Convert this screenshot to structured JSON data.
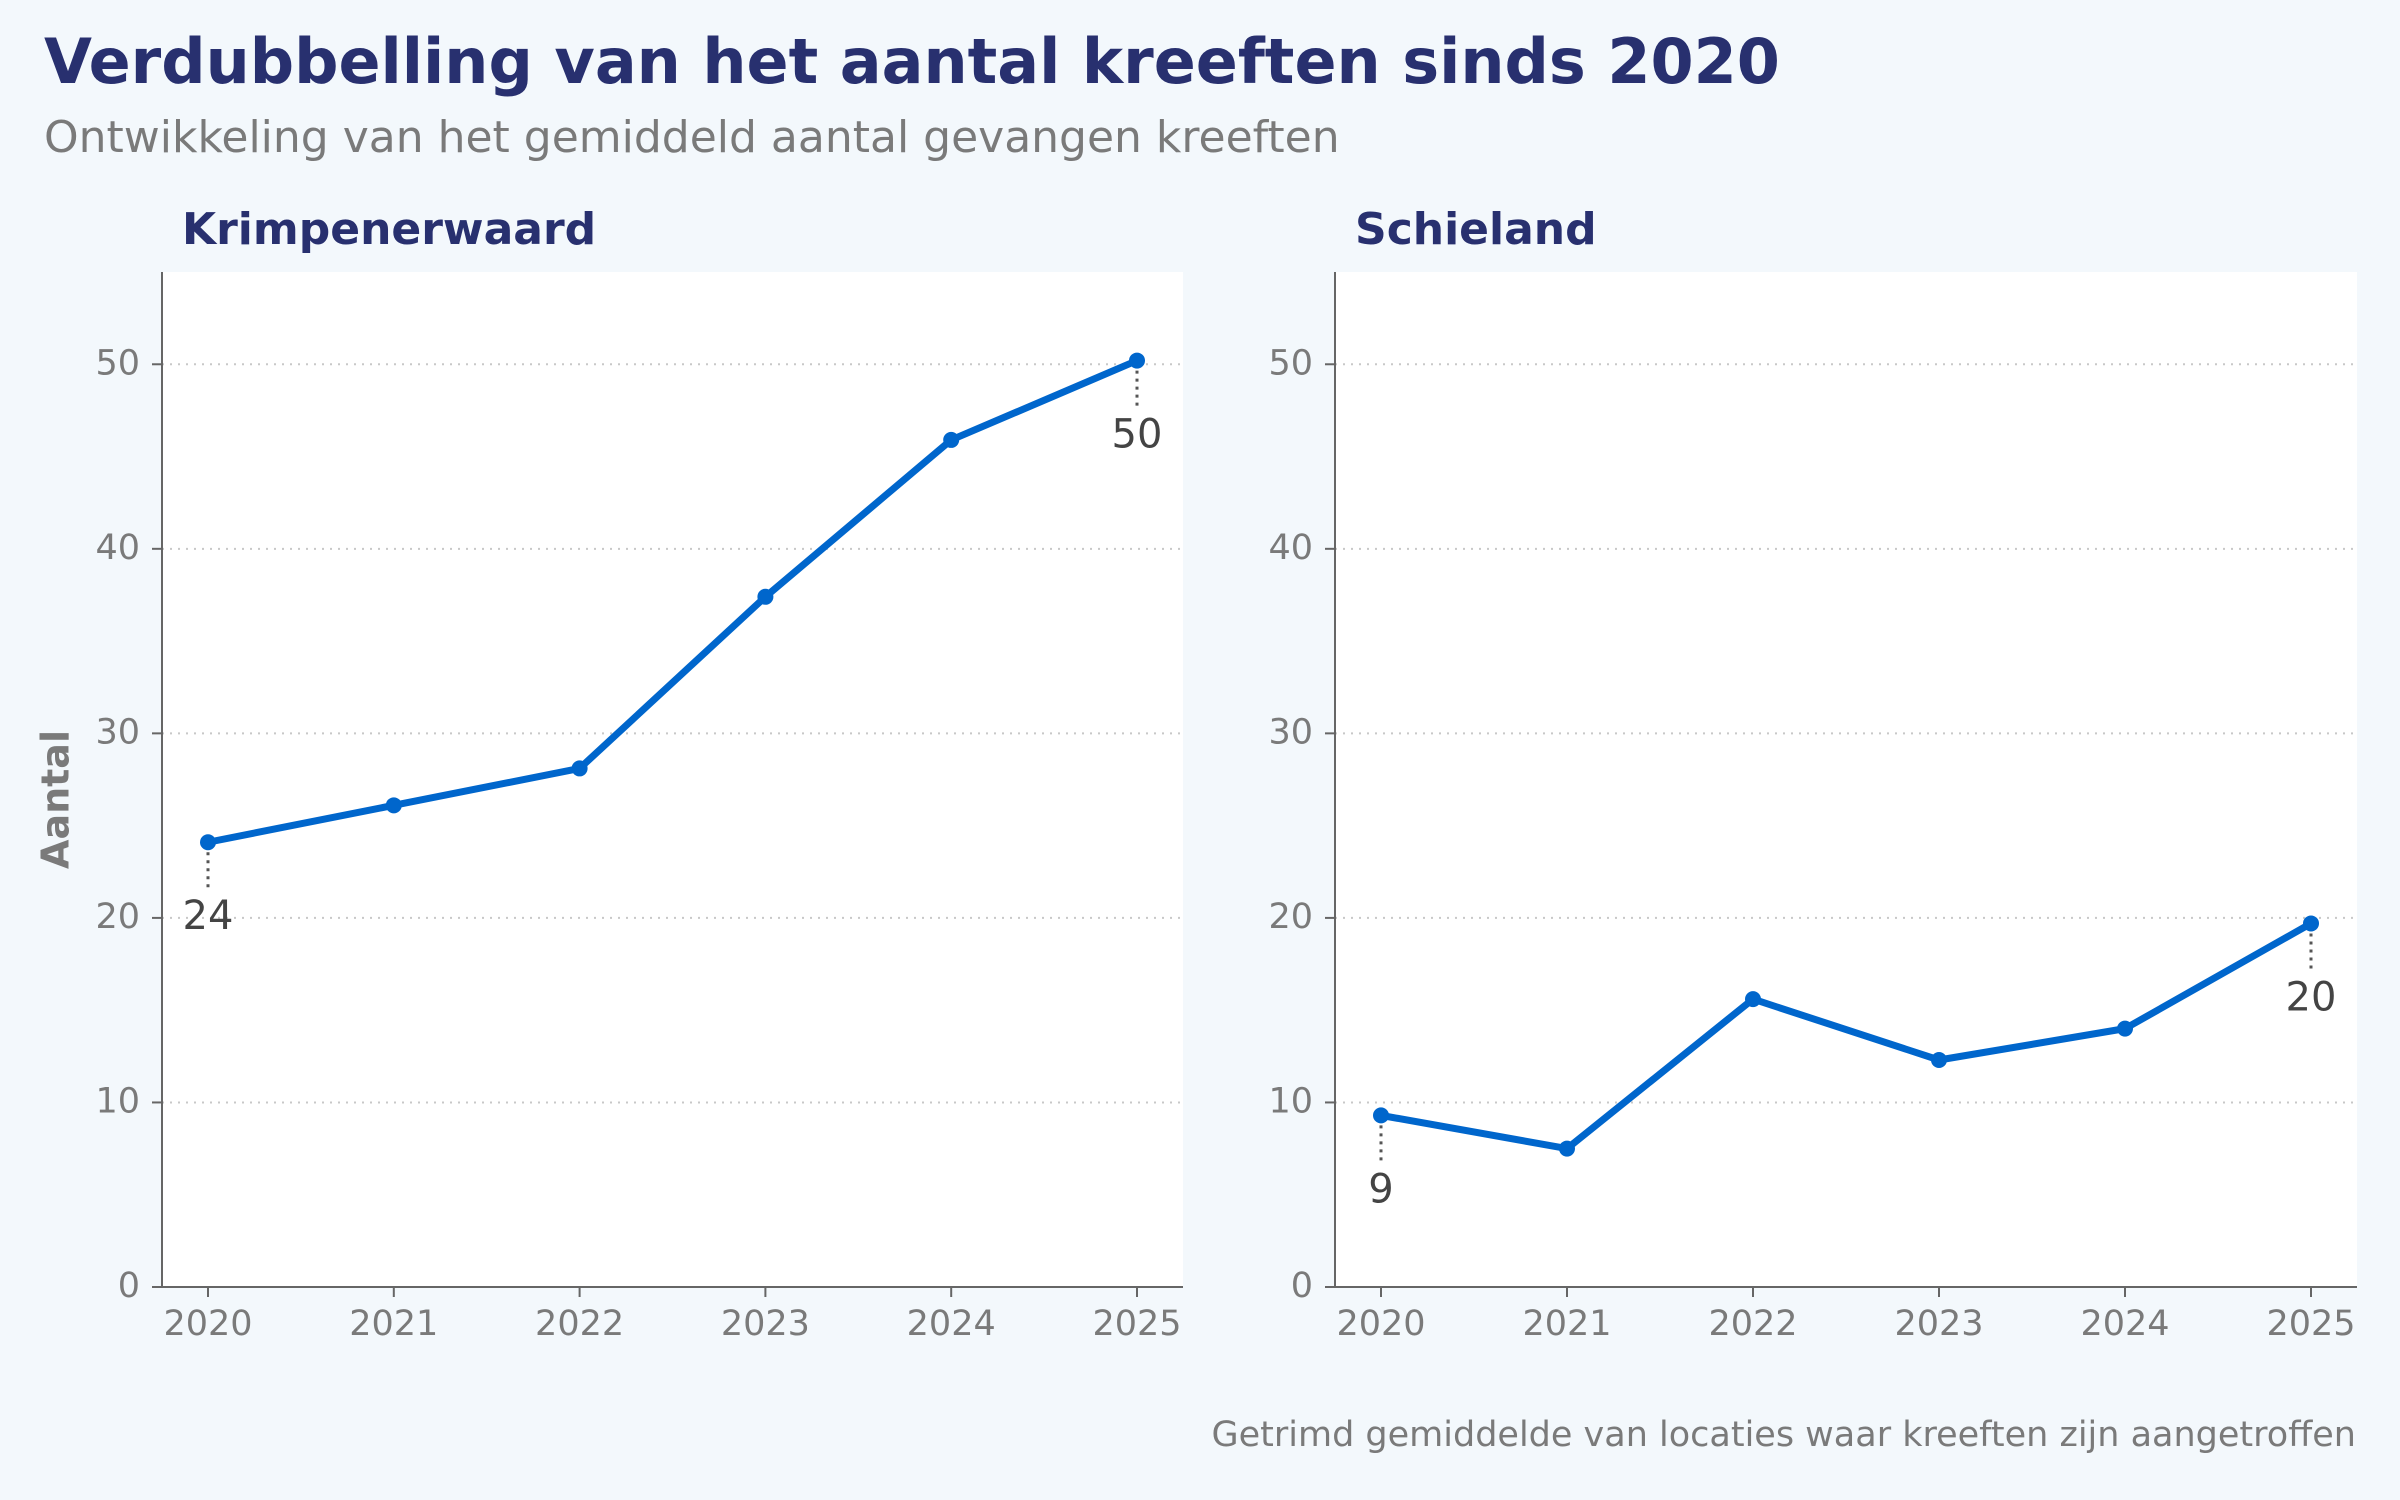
{
  "title": "Verdubbelling van het aantal kreeften sinds 2020",
  "subtitle": "Ontwikkeling van het gemiddeld aantal gevangen kreeften",
  "caption": "Getrimd gemiddelde van locaties waar kreeften zijn aangetroffen",
  "chart_data": [
    {
      "type": "line",
      "title": "Krimpenerwaard",
      "y_label": "Aantal",
      "categories": [
        "2020",
        "2021",
        "2022",
        "2023",
        "2024",
        "2025"
      ],
      "values": [
        24.1,
        26.1,
        28.1,
        37.4,
        45.9,
        50.2
      ],
      "value_labels": [
        "24",
        null,
        null,
        null,
        null,
        "50"
      ],
      "color": "#0066cc",
      "ylim": [
        0,
        55
      ],
      "yticks": [
        0,
        10,
        20,
        30,
        40,
        50
      ],
      "grid": true
    },
    {
      "type": "line",
      "title": "Schieland",
      "categories": [
        "2020",
        "2021",
        "2022",
        "2023",
        "2024",
        "2025"
      ],
      "values": [
        9.3,
        7.5,
        15.6,
        12.3,
        14.0,
        19.7
      ],
      "value_labels": [
        "9",
        null,
        null,
        null,
        null,
        "20"
      ],
      "color": "#0066cc",
      "ylim": [
        0,
        55
      ],
      "yticks": [
        0,
        10,
        20,
        30,
        40,
        50
      ],
      "grid": true
    }
  ]
}
